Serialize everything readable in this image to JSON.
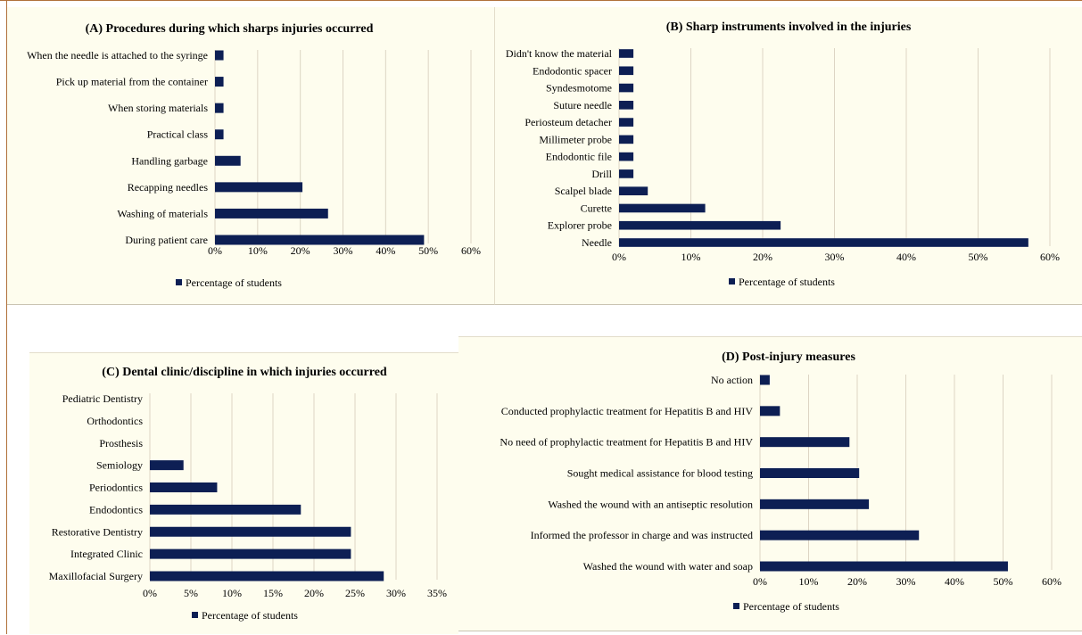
{
  "colors": {
    "bar": "#0d1f54",
    "panel_bg": "#fefdee",
    "frame": "#b0713a",
    "grid": "#ddd5c4"
  },
  "chart_data": [
    {
      "id": "A",
      "type": "bar",
      "orientation": "horizontal",
      "title": "(A) Procedures during which sharps injuries occurred",
      "categories": [
        "During patient care",
        "Washing of materials",
        "Recapping needles",
        "Handling garbage",
        "Practical class",
        "When storing materials",
        "Pick up material from the container",
        "When the needle is attached to the syringe"
      ],
      "series": [
        {
          "name": "Percentage of students",
          "values": [
            49,
            26.5,
            20.5,
            6,
            2,
            2,
            2,
            2
          ]
        }
      ],
      "xlim": [
        0,
        60
      ],
      "ticks": [
        "0%",
        "10%",
        "20%",
        "30%",
        "40%",
        "50%",
        "60%"
      ],
      "grid": true,
      "legend": "bottom"
    },
    {
      "id": "B",
      "type": "bar",
      "orientation": "horizontal",
      "title": "(B) Sharp instruments involved in the injuries",
      "categories": [
        "Needle",
        "Explorer probe",
        "Curette",
        "Scalpel blade",
        "Drill",
        "Endodontic file",
        "Millimeter probe",
        "Periosteum detacher",
        "Suture needle",
        "Syndesmotome",
        "Endodontic spacer",
        "Didn't know the material"
      ],
      "series": [
        {
          "name": "Percentage of students",
          "values": [
            57,
            22.5,
            12,
            4,
            2,
            2,
            2,
            2,
            2,
            2,
            2,
            2
          ]
        }
      ],
      "xlim": [
        0,
        60
      ],
      "ticks": [
        "0%",
        "10%",
        "20%",
        "30%",
        "40%",
        "50%",
        "60%"
      ],
      "grid": true,
      "legend": "bottom"
    },
    {
      "id": "C",
      "type": "bar",
      "orientation": "horizontal",
      "title": "(C) Dental clinic/discipline in which injuries occurred",
      "categories": [
        "Maxillofacial Surgery",
        "Integrated Clinic",
        "Restorative Dentistry",
        "Endodontics",
        "Periodontics",
        "Semiology",
        "Prosthesis",
        "Orthodontics",
        "Pediatric Dentistry"
      ],
      "series": [
        {
          "name": "Percentage of students",
          "values": [
            28.5,
            24.5,
            24.5,
            18.4,
            8.2,
            4.1,
            0,
            0,
            0
          ]
        }
      ],
      "xlim": [
        0,
        35
      ],
      "ticks": [
        "0%",
        "5%",
        "10%",
        "15%",
        "20%",
        "25%",
        "30%",
        "35%"
      ],
      "grid": true,
      "legend": "bottom"
    },
    {
      "id": "D",
      "type": "bar",
      "orientation": "horizontal",
      "title": "(D) Post-injury measures",
      "categories": [
        "Washed the wound with water and soap",
        "Informed the professor in charge and was instructed",
        "Washed the wound with an antiseptic resolution",
        "Sought medical assistance for blood testing",
        "No need of prophylactic treatment for Hepatitis B and HIV",
        "Conducted prophylactic treatment for Hepatitis B and HIV",
        "No action"
      ],
      "series": [
        {
          "name": "Percentage of students",
          "values": [
            51,
            32.7,
            22.4,
            20.4,
            18.4,
            4.1,
            2
          ]
        }
      ],
      "xlim": [
        0,
        60
      ],
      "ticks": [
        "0%",
        "10%",
        "20%",
        "30%",
        "40%",
        "50%",
        "60%"
      ],
      "grid": true,
      "legend": "bottom"
    }
  ]
}
